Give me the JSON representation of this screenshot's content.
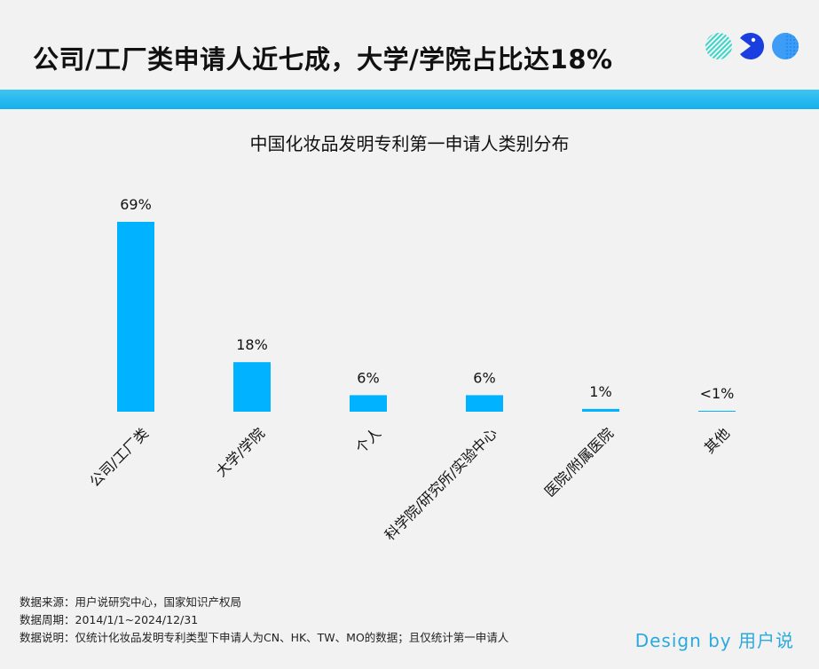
{
  "headline": "公司/工厂类申请人近七成，大学/学院占比达18%",
  "brand": "Design by 用户说",
  "colors": {
    "bar": "#00b2ff",
    "band": "#13b0ec",
    "brand": "#2aa9df"
  },
  "notes": {
    "source": "数据来源：用户说研究中心，国家知识产权局",
    "period": "数据周期：2014/1/1~2024/12/31",
    "description": "数据说明：仅统计化妆品发明专利类型下申请人为CN、HK、TW、MO的数据；且仅统计第一申请人"
  },
  "chart_data": {
    "type": "bar",
    "title": "中国化妆品发明专利第一申请人类别分布",
    "categories": [
      "公司/工厂类",
      "大学/学院",
      "个人",
      "科学院/研究所/实验中心",
      "医院/附属医院",
      "其他"
    ],
    "values": [
      69,
      18,
      6,
      6,
      1,
      0.2
    ],
    "labels": [
      "69%",
      "18%",
      "6%",
      "6%",
      "1%",
      "<1%"
    ],
    "ylim": [
      0,
      69
    ],
    "grid": false,
    "legend": "none"
  }
}
